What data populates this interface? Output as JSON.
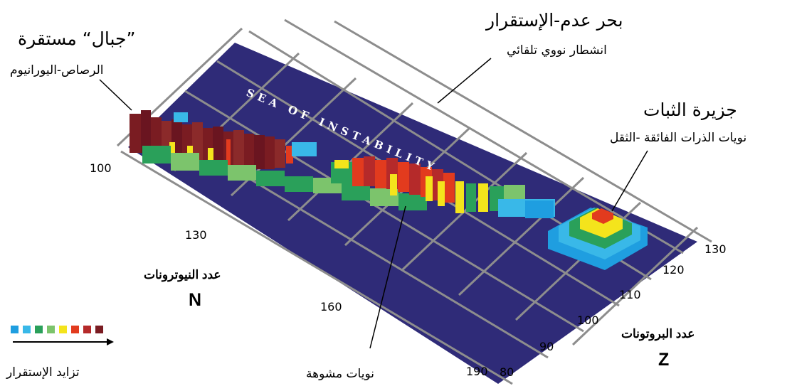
{
  "labels": {
    "sea_title": "بحر عدم-الإستقرار",
    "sea_sub": "انشطار نووي تلقائي",
    "sea_board": "SEA OF INSTABILITY",
    "mountains_title": "”جبال“ مستقرة",
    "mountains_sub": "الرصاص-اليورانيوم",
    "island_title": "جزيرة الثبات",
    "island_sub": "نويات الذرات الفائقة -الثقل",
    "deformed": "نويات مشوهة",
    "neutron_axis": "عدد النيوترونات",
    "neutron_symbol": "N",
    "proton_axis": "عدد البروتونات",
    "proton_symbol": "Z",
    "legend_caption": "تزايد الإستقرار"
  },
  "neutron_ticks": [
    "100",
    "130",
    "160",
    "190"
  ],
  "proton_ticks": [
    "80",
    "90",
    "100",
    "110",
    "120",
    "130"
  ],
  "legend_colors": [
    "#1f9ee0",
    "#39b8e8",
    "#2aa05a",
    "#7cc46c",
    "#f4e41c",
    "#e23b1e",
    "#b52a2a",
    "#7a1c22"
  ],
  "colors": {
    "board": "#2f2b78",
    "grid": "#8a8a8a"
  }
}
